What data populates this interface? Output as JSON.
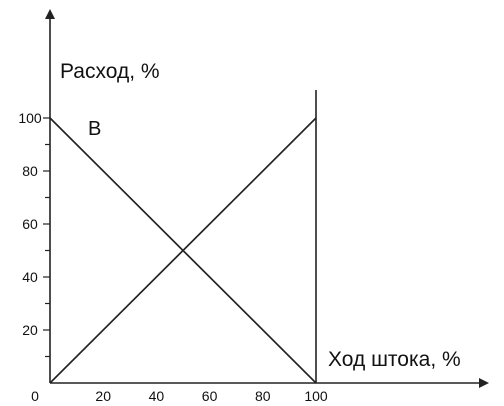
{
  "chart_data": {
    "type": "line",
    "xlabel": "Ход штока, %",
    "ylabel": "Расход, %",
    "xlim": [
      0,
      100
    ],
    "ylim": [
      0,
      100
    ],
    "x_ticks": [
      0,
      20,
      40,
      60,
      80,
      100
    ],
    "x_tick_labels": [
      "0",
      "20",
      "40",
      "60",
      "80",
      "100"
    ],
    "y_ticks": [
      20,
      40,
      60,
      80,
      100
    ],
    "y_tick_labels": [
      "20",
      "40",
      "60",
      "80",
      "100"
    ],
    "grid": false,
    "series": [
      {
        "x": [
          0,
          100
        ],
        "y": [
          0,
          100
        ]
      },
      {
        "name": "B",
        "x": [
          0,
          100
        ],
        "y": [
          100,
          0
        ]
      }
    ],
    "line_color": "#222222"
  }
}
